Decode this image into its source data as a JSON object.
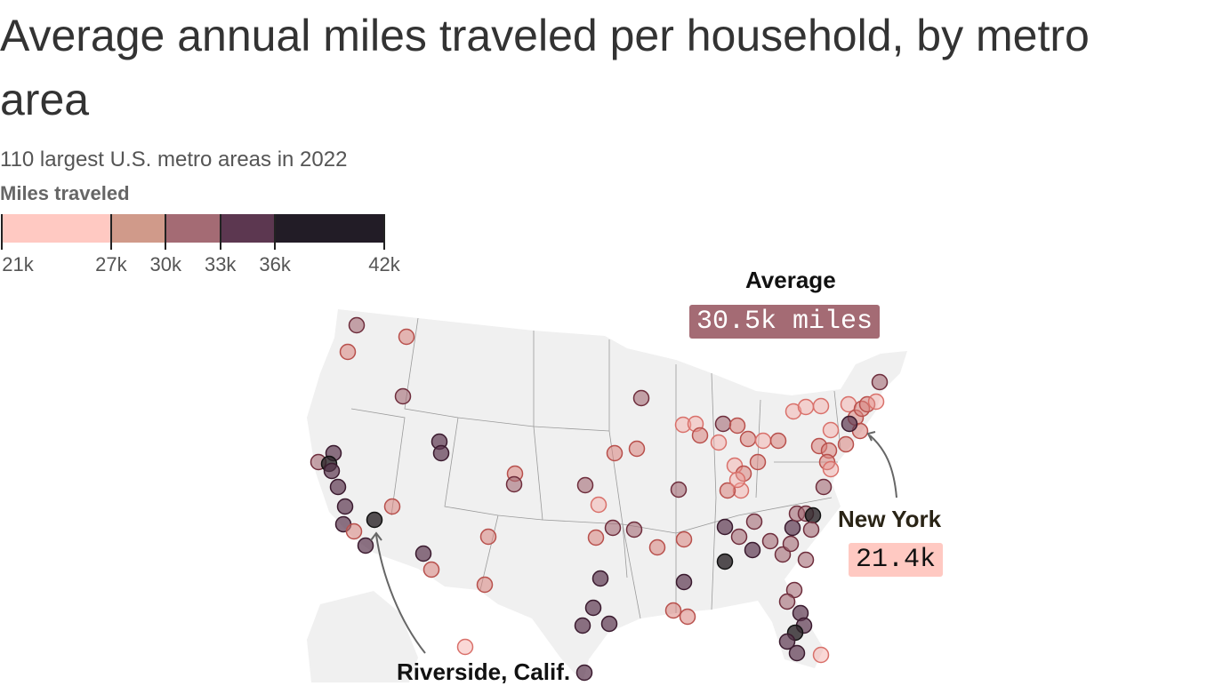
{
  "header": {
    "title": "Average annual miles traveled per household, by metro area",
    "subtitle": "110 largest U.S. metro areas in 2022"
  },
  "chart_data": {
    "type": "map",
    "title": "Average annual miles traveled per household, by metro area",
    "subtitle": "110 largest U.S. metro areas in 2022",
    "legend": {
      "title": "Miles traveled",
      "ticks": [
        "21k",
        "27k",
        "30k",
        "33k",
        "36k",
        "42k"
      ],
      "bins": [
        {
          "from": 21,
          "to": 27,
          "color": "#ffc9c2"
        },
        {
          "from": 27,
          "to": 30,
          "color": "#d09a8a"
        },
        {
          "from": 30,
          "to": 33,
          "color": "#a46b74"
        },
        {
          "from": 33,
          "to": 36,
          "color": "#5c3750"
        },
        {
          "from": 36,
          "to": 42,
          "color": "#221c26"
        }
      ]
    },
    "annotations": {
      "average": {
        "label": "Average",
        "value": "30.5k miles",
        "color": "#a46b74"
      },
      "new_york": {
        "label": "New York",
        "value": "21.4k",
        "color": "#ffc9c2"
      },
      "riverside": {
        "label": "Riverside, Calif."
      }
    },
    "dot_colors": {
      "1": "#f4a9a3",
      "2": "#d9837e",
      "3": "#a46b74",
      "4": "#5c3750",
      "5": "#2a2428"
    }
  }
}
